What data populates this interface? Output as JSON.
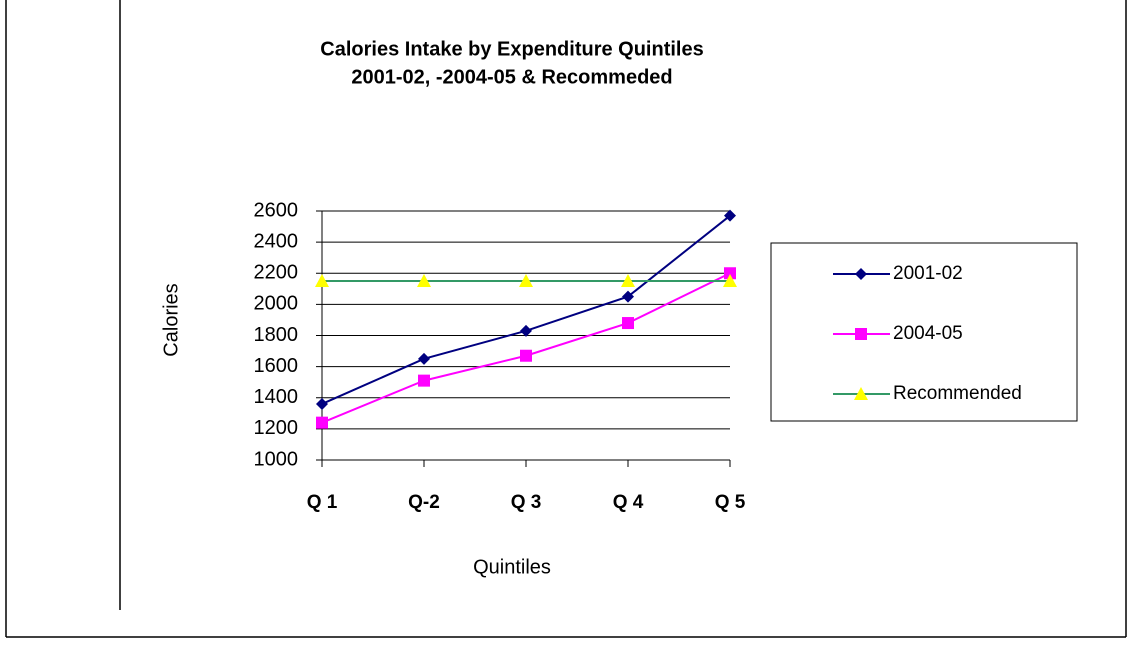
{
  "chart_data": {
    "type": "line",
    "title": "Calories Intake by Expenditure Quintiles",
    "subtitle": "2001-02, -2004-05 & Recommeded",
    "x_label": "Quintiles",
    "y_label": "Calories",
    "categories": [
      "Q 1",
      "Q-2",
      "Q 3",
      "Q 4",
      "Q 5"
    ],
    "series": [
      {
        "name": "2001-02",
        "color": "#000080",
        "marker_color": "#000080",
        "marker": "diamond",
        "values": [
          1360,
          1650,
          1830,
          2050,
          2570
        ]
      },
      {
        "name": "2004-05",
        "color": "#ff00ff",
        "marker_color": "#ff00ff",
        "marker": "square",
        "values": [
          1240,
          1510,
          1670,
          1880,
          2200
        ]
      },
      {
        "name": "Recommended",
        "color": "#339966",
        "marker_color": "#ffff00",
        "marker": "triangle",
        "values": [
          2150,
          2150,
          2150,
          2150,
          2150
        ]
      }
    ],
    "ylim": [
      1000,
      2600
    ],
    "yticks": [
      1000,
      1200,
      1400,
      1600,
      1800,
      2000,
      2200,
      2400,
      2600
    ],
    "grid": true,
    "legend": "right"
  }
}
